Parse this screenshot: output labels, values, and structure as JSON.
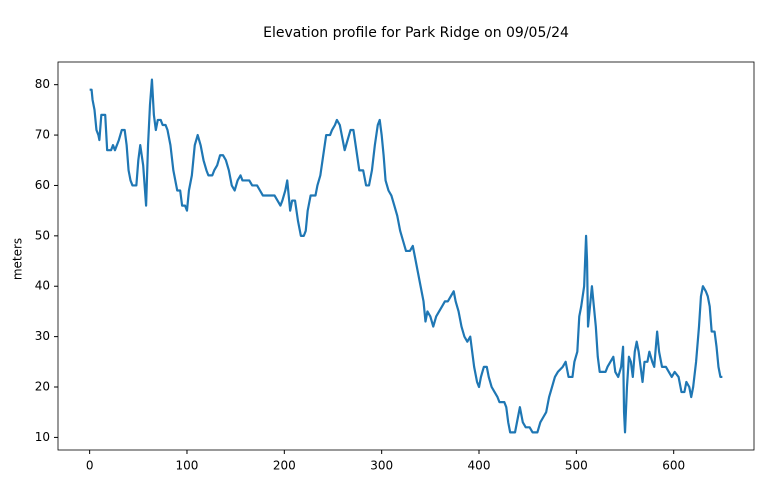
{
  "chart_data": {
    "type": "line",
    "title": "Elevation profile for Park Ridge on 09/05/24",
    "ylabel": "meters",
    "x": [
      0,
      2,
      3,
      5,
      7,
      9,
      10,
      12,
      16,
      18,
      22,
      24,
      26,
      30,
      33,
      36,
      38,
      40,
      42,
      44,
      48,
      50,
      52,
      55,
      58,
      60,
      62,
      64,
      66,
      68,
      70,
      73,
      75,
      78,
      80,
      83,
      86,
      90,
      93,
      95,
      98,
      100,
      102,
      105,
      108,
      111,
      114,
      117,
      120,
      122,
      126,
      128,
      131,
      134,
      137,
      140,
      143,
      146,
      149,
      152,
      155,
      157,
      160,
      164,
      167,
      172,
      175,
      178,
      185,
      190,
      193,
      196,
      198,
      201,
      203,
      206,
      208,
      211,
      214,
      217,
      220,
      222,
      224,
      227,
      232,
      234,
      237,
      240,
      243,
      247,
      249,
      252,
      254,
      257,
      260,
      262,
      265,
      268,
      271,
      274,
      277,
      281,
      284,
      287,
      290,
      293,
      296,
      298,
      300,
      302,
      304,
      307,
      310,
      313,
      316,
      319,
      322,
      325,
      329,
      332,
      334,
      337,
      340,
      343,
      345,
      347,
      350,
      353,
      356,
      359,
      362,
      365,
      368,
      371,
      374,
      376,
      379,
      382,
      385,
      388,
      391,
      393,
      395,
      398,
      400,
      402,
      405,
      408,
      410,
      413,
      416,
      419,
      421,
      426,
      428,
      430,
      432,
      437,
      440,
      442,
      445,
      448,
      452,
      455,
      460,
      463,
      466,
      469,
      472,
      475,
      478,
      481,
      486,
      489,
      492,
      496,
      498,
      501,
      503,
      505,
      508,
      510,
      511,
      512,
      514,
      516,
      518,
      520,
      522,
      524,
      530,
      532,
      535,
      538,
      540,
      543,
      546,
      548,
      549,
      550,
      552,
      554,
      556,
      558,
      560,
      562,
      564,
      566,
      568,
      570,
      573,
      575,
      578,
      580,
      583,
      585,
      588,
      592,
      595,
      598,
      601,
      605,
      608,
      611,
      613,
      616,
      618,
      620,
      623,
      626,
      628,
      630,
      633,
      635,
      637,
      639,
      642,
      644,
      646,
      648,
      650
    ],
    "series": [
      {
        "name": "elevation",
        "color": "#1f77b4",
        "values": [
          79,
          79,
          77,
          75,
          71,
          70,
          69,
          74,
          74,
          67,
          67,
          68,
          67,
          69,
          71,
          71,
          68,
          63,
          61,
          60,
          60,
          65,
          68,
          64,
          56,
          68,
          76,
          81,
          74,
          71,
          73,
          73,
          72,
          72,
          71,
          68,
          63,
          59,
          59,
          56,
          56,
          55,
          59,
          62,
          68,
          70,
          68,
          65,
          63,
          62,
          62,
          63,
          64,
          66,
          66,
          65,
          63,
          60,
          59,
          61,
          62,
          61,
          61,
          61,
          60,
          60,
          59,
          58,
          58,
          58,
          57,
          56,
          57,
          59,
          61,
          55,
          57,
          57,
          53,
          50,
          50,
          51,
          55,
          58,
          58,
          60,
          62,
          66,
          70,
          70,
          71,
          72,
          73,
          72,
          69,
          67,
          69,
          71,
          71,
          67,
          63,
          63,
          60,
          60,
          63,
          68,
          72,
          73,
          70,
          66,
          61,
          59,
          58,
          56,
          54,
          51,
          49,
          47,
          47,
          48,
          46,
          43,
          40,
          37,
          33,
          35,
          34,
          32,
          34,
          35,
          36,
          37,
          37,
          38,
          39,
          37,
          35,
          32,
          30,
          29,
          30,
          27,
          24,
          21,
          20,
          22,
          24,
          24,
          22,
          20,
          19,
          18,
          17,
          17,
          16,
          13,
          11,
          11,
          14,
          16,
          13,
          12,
          12,
          11,
          11,
          13,
          14,
          15,
          18,
          20,
          22,
          23,
          24,
          25,
          22,
          22,
          25,
          27,
          34,
          36,
          40,
          50,
          45,
          32,
          36,
          40,
          36,
          32,
          26,
          23,
          23,
          24,
          25,
          26,
          23,
          22,
          24,
          28,
          15,
          11,
          20,
          26,
          25,
          22,
          27,
          29,
          27,
          24,
          21,
          25,
          25,
          27,
          25,
          24,
          31,
          27,
          24,
          24,
          23,
          22,
          23,
          22,
          19,
          19,
          21,
          20,
          18,
          20,
          25,
          32,
          38,
          40,
          39,
          38,
          36,
          31,
          31,
          28,
          24,
          22,
          22
        ]
      }
    ],
    "xlim": [
      -32.5,
      682.5
    ],
    "ylim": [
      7.5,
      84.5
    ],
    "xticks": [
      0,
      100,
      200,
      300,
      400,
      500,
      600
    ],
    "yticks": [
      10,
      20,
      30,
      40,
      50,
      60,
      70,
      80
    ],
    "grid": false
  }
}
